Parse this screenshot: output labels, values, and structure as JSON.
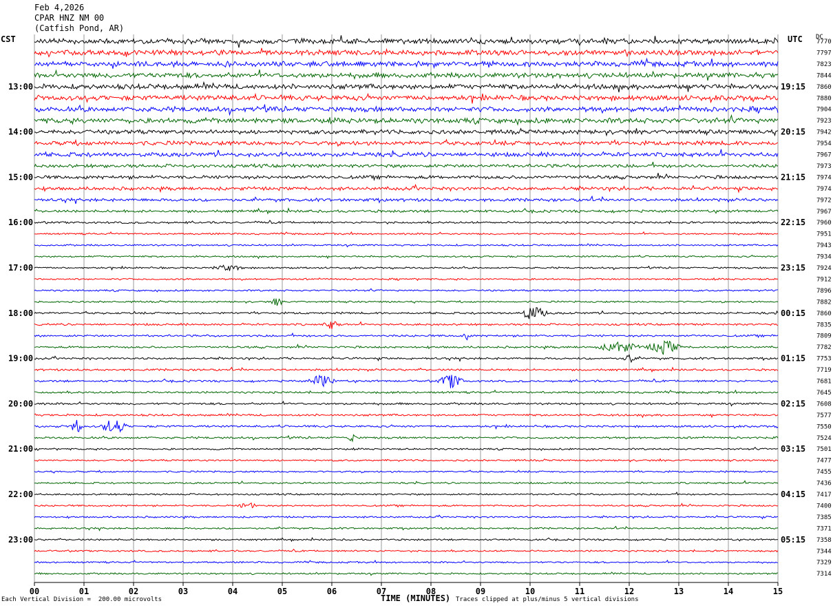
{
  "header": {
    "date": "Feb 4,2026",
    "station": "CPAR HNZ NM 00",
    "location": "(Catfish Pond, AR)"
  },
  "left_zone": "CST",
  "right_zone": "UTC",
  "dc_header": "DC",
  "footer": {
    "scale_note": "Each Vertical Division =  200.00 microvolts",
    "axis_title": "TIME (MINUTES)",
    "clip_note": "Traces clipped at plus/minus 5 vertical divisions"
  },
  "chart_data": {
    "type": "line",
    "title": "",
    "xlabel": "TIME (MINUTES)",
    "xlim": [
      0,
      15
    ],
    "x_ticks": [
      "00",
      "01",
      "02",
      "03",
      "04",
      "05",
      "06",
      "07",
      "08",
      "09",
      "10",
      "11",
      "12",
      "13",
      "14",
      "15"
    ],
    "left_hour_labels": [
      "13:00",
      "14:00",
      "15:00",
      "16:00",
      "17:00",
      "18:00",
      "19:00",
      "20:00",
      "21:00",
      "22:00",
      "23:00"
    ],
    "right_hour_labels": [
      "19:15",
      "20:15",
      "21:15",
      "22:15",
      "23:15",
      "00:15",
      "01:15",
      "02:15",
      "03:15",
      "04:15",
      "05:15"
    ],
    "trace_colors": [
      "#000000",
      "#ff0000",
      "#0000ff",
      "#006600"
    ],
    "dc_offsets": [
      7770,
      7797,
      7823,
      7844,
      7860,
      7880,
      7904,
      7923,
      7942,
      7954,
      7967,
      7973,
      7974,
      7974,
      7972,
      7967,
      7960,
      7951,
      7943,
      7934,
      7924,
      7912,
      7896,
      7882,
      7860,
      7835,
      7809,
      7782,
      7753,
      7719,
      7681,
      7645,
      7608,
      7577,
      7550,
      7524,
      7501,
      7477,
      7455,
      7436,
      7417,
      7400,
      7385,
      7371,
      7358,
      7344,
      7329,
      7314
    ],
    "trace_activity": [
      3,
      3,
      3,
      3,
      3,
      3,
      3,
      3,
      2.5,
      2.5,
      2.5,
      2,
      2,
      2,
      1.8,
      1.5,
      1.2,
      1,
      1,
      1,
      1,
      1,
      1,
      1,
      1.2,
      1.2,
      1.2,
      1.2,
      1.2,
      1.2,
      1.2,
      1.2,
      1.2,
      1.2,
      1.2,
      1.2,
      1,
      1,
      1,
      1,
      1,
      1,
      1,
      1,
      1,
      1,
      1,
      1
    ],
    "events": [
      {
        "trace": 24,
        "minute": 10.05,
        "amp": 10,
        "dur": 0.35
      },
      {
        "trace": 27,
        "minute": 11.8,
        "amp": 8,
        "dur": 0.5
      },
      {
        "trace": 27,
        "minute": 12.7,
        "amp": 10,
        "dur": 0.4
      },
      {
        "trace": 26,
        "minute": 8.7,
        "amp": 14,
        "dur": 0.05
      },
      {
        "trace": 30,
        "minute": 5.8,
        "amp": 10,
        "dur": 0.3
      },
      {
        "trace": 30,
        "minute": 8.4,
        "amp": 10,
        "dur": 0.3
      },
      {
        "trace": 34,
        "minute": 0.85,
        "amp": 10,
        "dur": 0.15
      },
      {
        "trace": 34,
        "minute": 1.6,
        "amp": 12,
        "dur": 0.3
      },
      {
        "trace": 35,
        "minute": 6.4,
        "amp": 8,
        "dur": 0.1
      },
      {
        "trace": 25,
        "minute": 6.0,
        "amp": 6,
        "dur": 0.2
      },
      {
        "trace": 23,
        "minute": 4.9,
        "amp": 6,
        "dur": 0.15
      },
      {
        "trace": 20,
        "minute": 3.9,
        "amp": 4,
        "dur": 0.4
      },
      {
        "trace": 41,
        "minute": 4.3,
        "amp": 5,
        "dur": 0.2
      },
      {
        "trace": 28,
        "minute": 12.0,
        "amp": 6,
        "dur": 0.15
      }
    ]
  }
}
